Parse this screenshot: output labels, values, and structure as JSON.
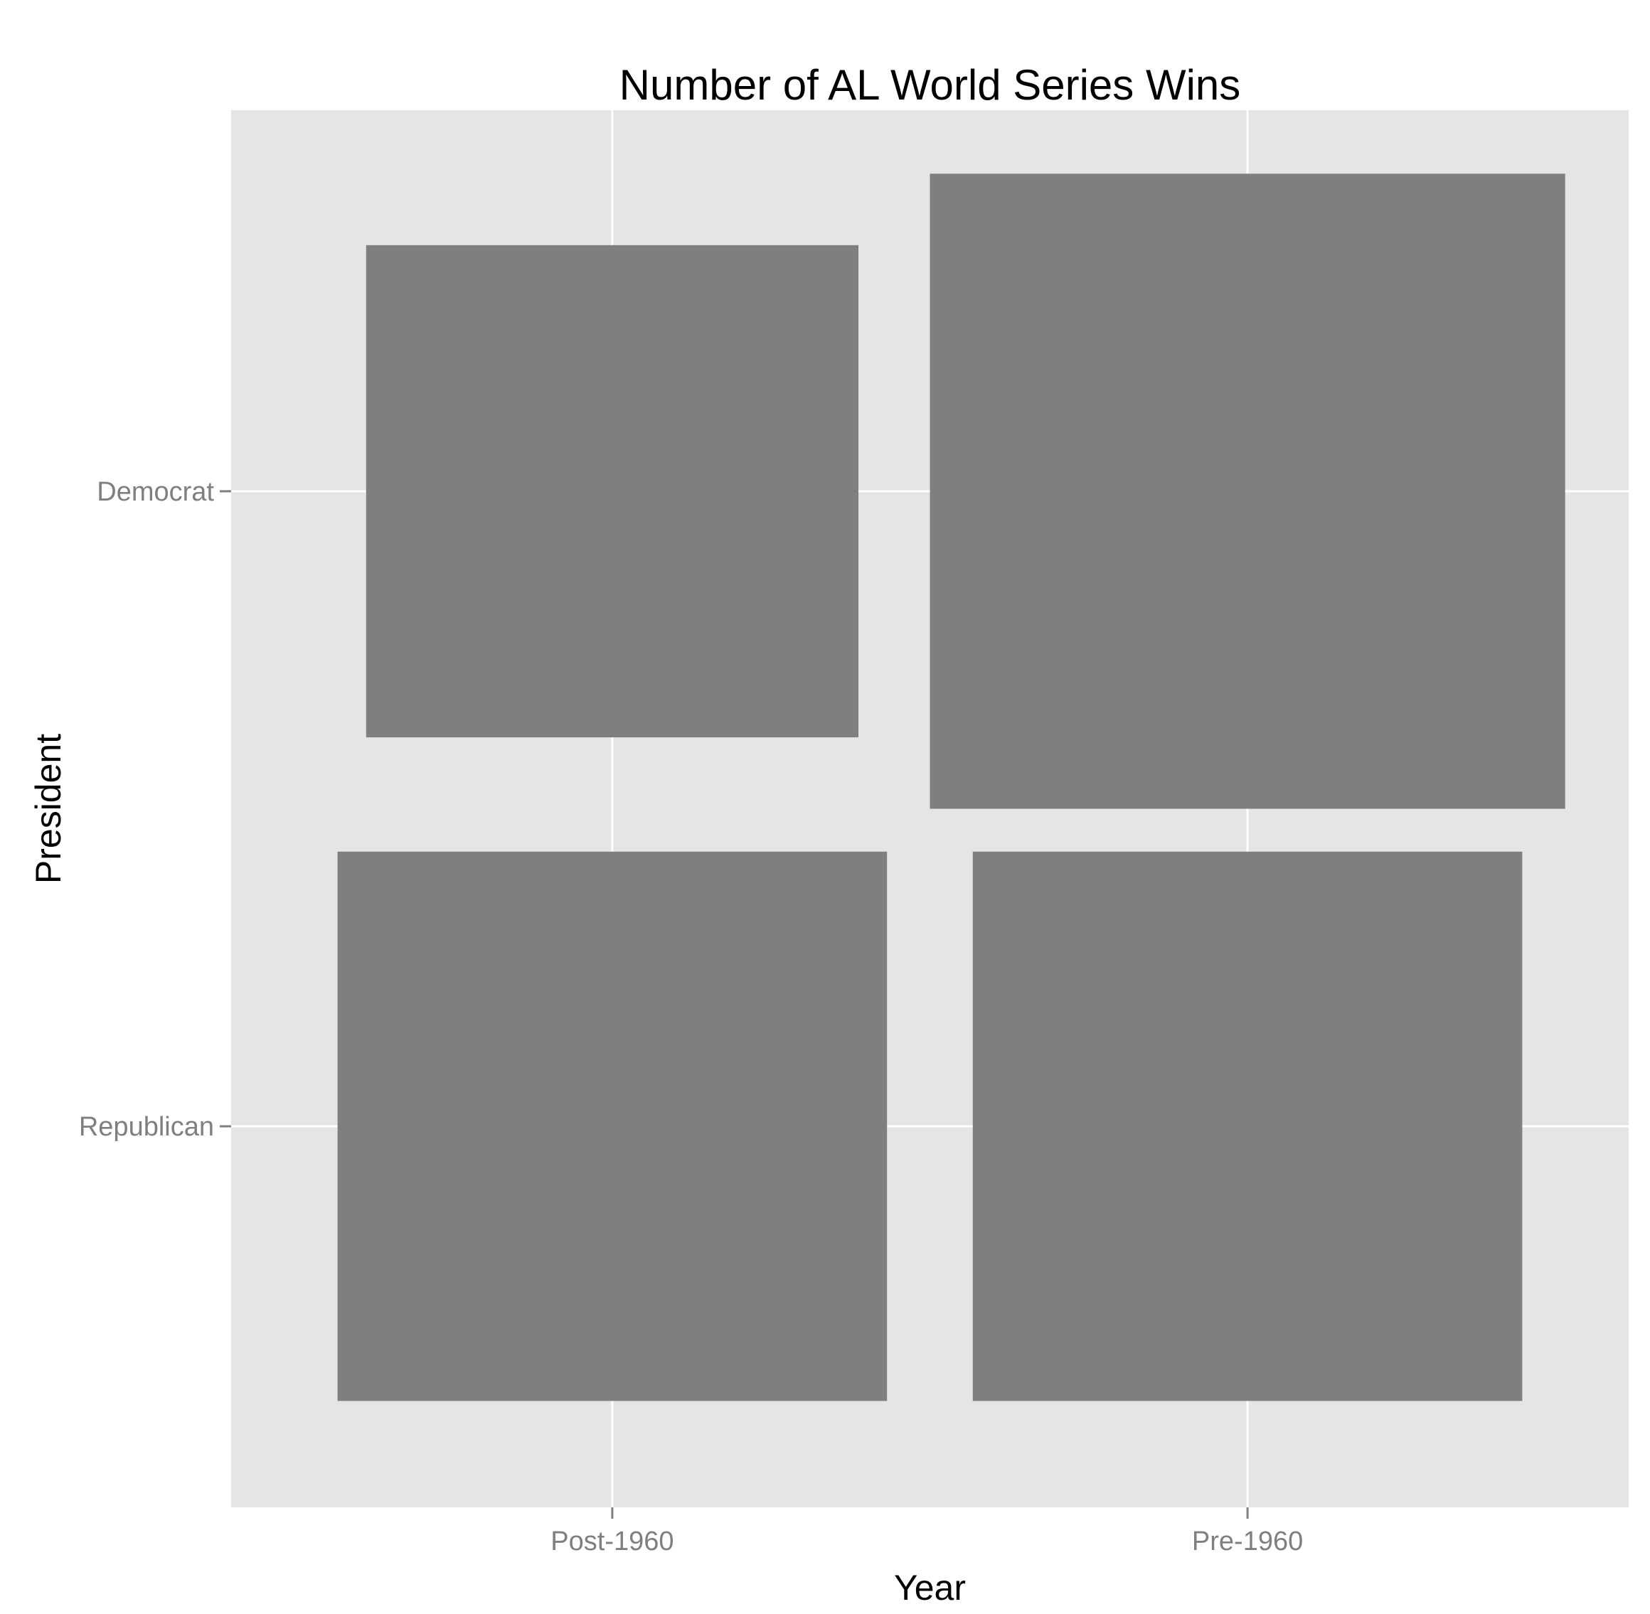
{
  "chart_data": {
    "type": "heatmap",
    "title": "Number of AL World Series Wins",
    "xlabel": "Year",
    "ylabel": "President",
    "x_categories": [
      "Post-1960",
      "Pre-1960"
    ],
    "y_categories": [
      "Republican",
      "Democrat"
    ],
    "cells": [
      {
        "x": "Post-1960",
        "y": "Democrat",
        "relative_size": 0.775
      },
      {
        "x": "Pre-1960",
        "y": "Democrat",
        "relative_size": 1.0
      },
      {
        "x": "Post-1960",
        "y": "Republican",
        "relative_size": 0.865
      },
      {
        "x": "Pre-1960",
        "y": "Republican",
        "relative_size": 0.865
      }
    ],
    "grid": true,
    "legend": "none",
    "colors": {
      "panel_background": "#e5e5e5",
      "grid_line": "#ffffff",
      "tile_fill": "#7f7f7f",
      "tick_label": "#7f7f7f",
      "text": "#000000"
    }
  }
}
